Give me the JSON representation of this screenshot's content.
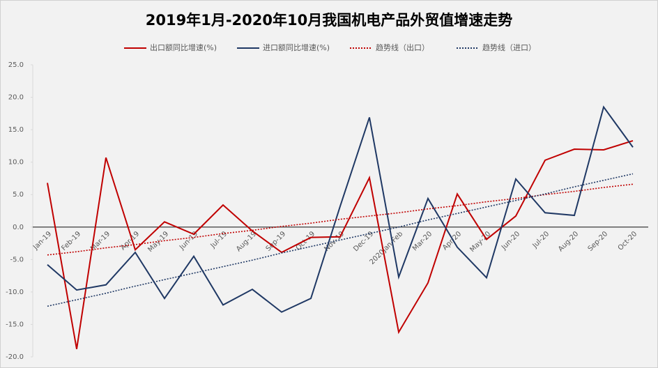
{
  "chart_data": {
    "type": "line",
    "title": "2019年1月-2020年10月我国机电产品外贸值增速走势",
    "categories": [
      "Jan-19",
      "Feb-19",
      "Mar-19",
      "Apr-19",
      "May-19",
      "Jun-19",
      "Jul-19",
      "Aug-19",
      "Sep-19",
      "Oct-19",
      "Nov-19",
      "Dec-19",
      "2020Jan-Feb",
      "Mar-20",
      "Apr-20",
      "May-20",
      "Jun-20",
      "Jul-20",
      "Aug-20",
      "Sep-20",
      "Oct-20"
    ],
    "series": [
      {
        "name": "出口额同比增速(%)",
        "color": "#c00000",
        "dash": "solid",
        "values": [
          6.8,
          -18.8,
          10.7,
          -3.5,
          0.8,
          -1.1,
          3.4,
          -0.6,
          -3.9,
          -1.6,
          -1.5,
          7.6,
          -16.2,
          -8.6,
          5.1,
          -1.9,
          1.7,
          10.3,
          12.0,
          11.9,
          13.3
        ]
      },
      {
        "name": "进口额同比增速(%)",
        "color": "#1f3864",
        "dash": "solid",
        "values": [
          -5.8,
          -9.7,
          -8.9,
          -3.9,
          -11.0,
          -4.5,
          -12.0,
          -9.6,
          -13.1,
          -11.0,
          3.2,
          16.9,
          -7.7,
          4.4,
          -3.1,
          -7.8,
          7.4,
          2.2,
          1.8,
          18.5,
          12.3
        ]
      },
      {
        "name": "趋势线（出口）",
        "color": "#c00000",
        "dash": "dotted",
        "values": [
          -4.3,
          -3.8,
          -3.2,
          -2.7,
          -2.1,
          -1.6,
          -1.0,
          -0.5,
          0.1,
          0.6,
          1.2,
          1.7,
          2.2,
          2.8,
          3.3,
          3.9,
          4.4,
          5.0,
          5.5,
          6.1,
          6.6
        ]
      },
      {
        "name": "趋势线（进口）",
        "color": "#1f3864",
        "dash": "dotted",
        "values": [
          -12.2,
          -11.2,
          -10.2,
          -9.1,
          -8.1,
          -7.1,
          -6.1,
          -5.1,
          -4.0,
          -3.0,
          -2.0,
          -1.0,
          0.0,
          1.1,
          2.1,
          3.1,
          4.1,
          5.1,
          6.2,
          7.2,
          8.2
        ]
      }
    ],
    "ylim": [
      -20,
      25
    ],
    "yticks": [
      {
        "value": -20,
        "label": "-20.0"
      },
      {
        "value": -15,
        "label": "-15.0"
      },
      {
        "value": -10,
        "label": "-10.0"
      },
      {
        "value": -5,
        "label": "-5.0"
      },
      {
        "value": 0,
        "label": "0.0"
      },
      {
        "value": 5,
        "label": "5.0"
      },
      {
        "value": 10,
        "label": "10.0"
      },
      {
        "value": 15,
        "label": "15.0"
      },
      {
        "value": 20,
        "label": "20.0"
      },
      {
        "value": 25,
        "label": "25.0"
      }
    ],
    "grid": false,
    "legend": "top"
  }
}
